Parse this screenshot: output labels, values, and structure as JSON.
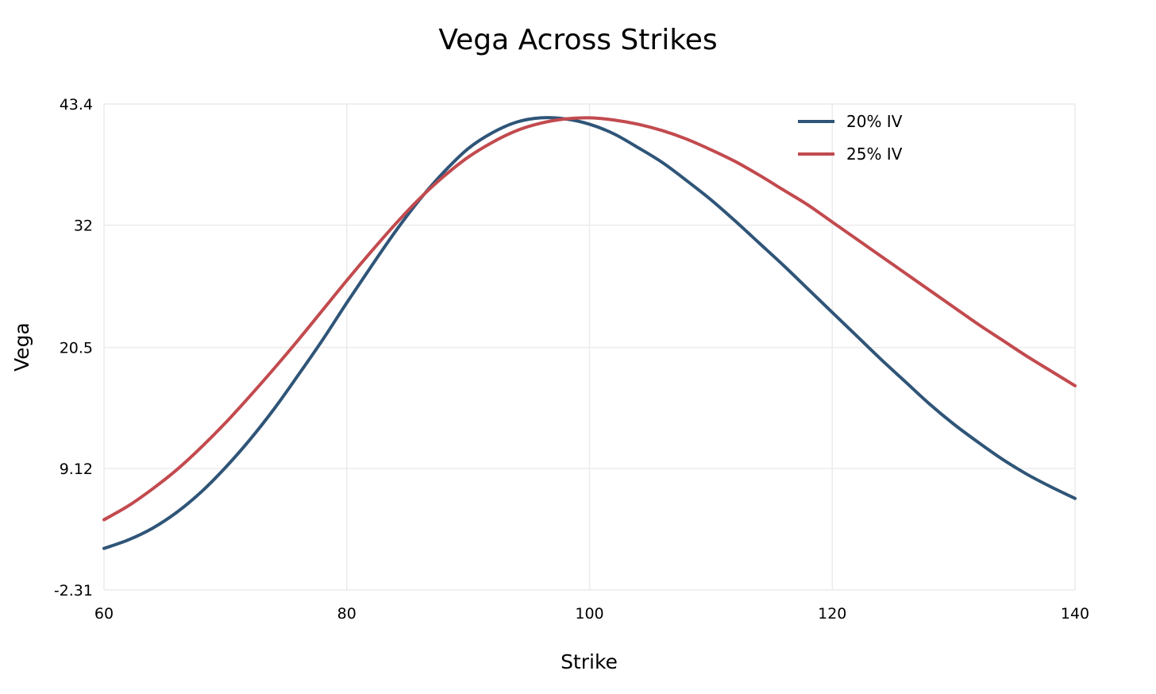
{
  "chart_data": {
    "type": "line",
    "title": "Vega Across Strikes",
    "xlabel": "Strike",
    "ylabel": "Vega",
    "xlim": [
      60,
      140
    ],
    "ylim": [
      -2.31,
      43.4
    ],
    "xticks": [
      60,
      80,
      100,
      120,
      140
    ],
    "xtick_labels": [
      "60",
      "80",
      "100",
      "120",
      "140"
    ],
    "yticks": [
      -2.31,
      9.12,
      20.5,
      32,
      43.4
    ],
    "ytick_labels": [
      "-2.31",
      "9.12",
      "20.5",
      "32",
      "43.4"
    ],
    "grid": true,
    "legend_position": "top-right",
    "x": [
      60,
      62,
      64,
      66,
      68,
      70,
      72,
      74,
      76,
      78,
      80,
      82,
      84,
      86,
      88,
      90,
      92,
      94,
      96,
      98,
      100,
      102,
      104,
      106,
      108,
      110,
      112,
      114,
      116,
      118,
      120,
      122,
      124,
      126,
      128,
      130,
      132,
      134,
      136,
      138,
      140
    ],
    "series": [
      {
        "name": "20% IV",
        "color": "#2f5578",
        "values": [
          1.6,
          2.4,
          3.5,
          5.0,
          6.9,
          9.2,
          11.8,
          14.7,
          17.9,
          21.2,
          24.7,
          28.1,
          31.4,
          34.4,
          37.0,
          39.2,
          40.7,
          41.7,
          42.1,
          42.0,
          41.5,
          40.6,
          39.3,
          37.9,
          36.2,
          34.4,
          32.4,
          30.3,
          28.2,
          26.0,
          23.8,
          21.6,
          19.4,
          17.3,
          15.2,
          13.3,
          11.6,
          10.0,
          8.6,
          7.4,
          6.3
        ],
        "note": ""
      },
      {
        "name": "25% IV",
        "color": "#c24a4e",
        "values": [
          4.3,
          5.6,
          7.2,
          9.0,
          11.1,
          13.4,
          15.9,
          18.5,
          21.2,
          24.0,
          26.8,
          29.5,
          32.1,
          34.5,
          36.6,
          38.4,
          39.8,
          40.9,
          41.6,
          42.0,
          42.1,
          41.9,
          41.5,
          40.9,
          40.1,
          39.1,
          38.0,
          36.7,
          35.3,
          33.9,
          32.3,
          30.7,
          29.1,
          27.5,
          25.9,
          24.3,
          22.7,
          21.2,
          19.7,
          18.3,
          16.9
        ],
        "note": ""
      }
    ]
  }
}
